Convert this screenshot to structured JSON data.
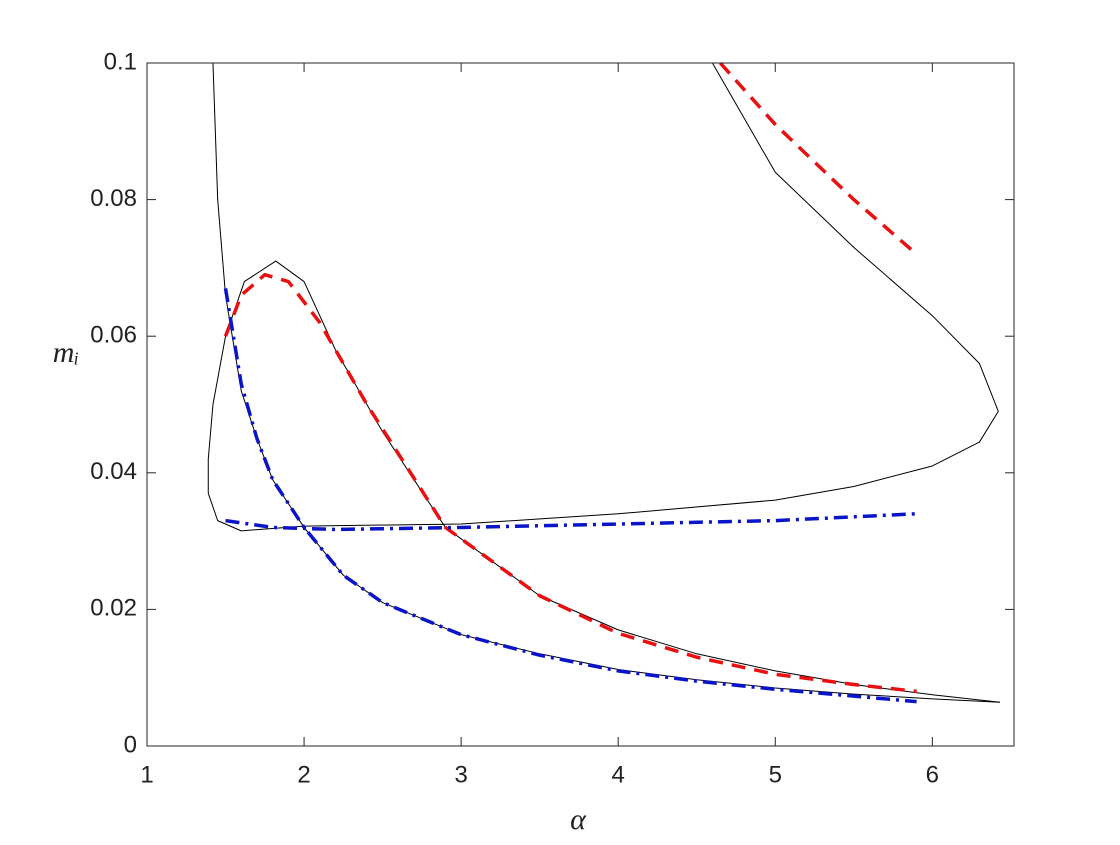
{
  "chart_data": {
    "type": "line",
    "xlabel": "α",
    "ylabel": "mᵢ",
    "xlim": [
      1,
      6.52
    ],
    "ylim": [
      0,
      0.1
    ],
    "xticks": [
      1,
      2,
      3,
      4,
      5,
      6
    ],
    "yticks": [
      0,
      0.02,
      0.04,
      0.06,
      0.08,
      0.1
    ],
    "grid": false,
    "series": [
      {
        "color": "#000000",
        "line_style": "solid",
        "x": [
          4.6,
          5.0,
          5.5,
          6.0,
          6.3,
          6.42,
          6.3,
          6.0,
          5.5,
          5.0,
          4.0,
          3.0,
          2.0,
          1.6,
          1.45,
          1.39,
          1.39,
          1.42,
          1.5,
          1.62,
          1.82,
          2.0,
          2.2,
          2.5,
          2.9,
          3.5,
          4.0,
          4.5,
          5.0,
          5.5,
          6.0,
          6.43
        ],
        "values": [
          0.1,
          0.084,
          0.073,
          0.063,
          0.056,
          0.049,
          0.0445,
          0.041,
          0.038,
          0.036,
          0.034,
          0.0325,
          0.0322,
          0.0315,
          0.033,
          0.037,
          0.042,
          0.05,
          0.06,
          0.068,
          0.071,
          0.068,
          0.058,
          0.046,
          0.032,
          0.022,
          0.017,
          0.0135,
          0.011,
          0.009,
          0.0075,
          0.0064
        ]
      },
      {
        "color": "#000000",
        "line_style": "solid",
        "x": [
          1.42,
          1.45,
          1.5,
          1.6,
          1.7,
          1.8,
          2.0,
          2.25,
          2.5,
          3.0,
          3.5,
          4.0,
          4.5,
          5.0,
          5.5,
          6.0,
          6.43
        ],
        "values": [
          0.1,
          0.08,
          0.066,
          0.052,
          0.045,
          0.039,
          0.032,
          0.025,
          0.021,
          0.0163,
          0.0135,
          0.0112,
          0.0097,
          0.0085,
          0.0076,
          0.0069,
          0.0064
        ]
      },
      {
        "color": "#e81010",
        "line_style": "dashed",
        "x": [
          1.5,
          1.6,
          1.75,
          1.9,
          2.1,
          2.4,
          2.9,
          3.5,
          4.0,
          4.5,
          5.0,
          5.5,
          5.9
        ],
        "values": [
          0.06,
          0.066,
          0.069,
          0.068,
          0.062,
          0.05,
          0.032,
          0.022,
          0.0165,
          0.013,
          0.0105,
          0.009,
          0.008
        ]
      },
      {
        "color": "#e81010",
        "line_style": "dashed",
        "x": [
          4.65,
          5.0,
          5.5,
          5.9
        ],
        "values": [
          0.1,
          0.091,
          0.08,
          0.072
        ]
      },
      {
        "color": "#0a14c8",
        "line_style": "dashdot",
        "x": [
          1.5,
          1.55,
          1.6,
          1.7,
          1.8,
          2.0,
          2.25,
          2.5,
          3.0,
          3.5,
          4.0,
          4.5,
          5.0,
          5.5,
          5.9
        ],
        "values": [
          0.067,
          0.06,
          0.053,
          0.045,
          0.039,
          0.032,
          0.025,
          0.021,
          0.0163,
          0.0133,
          0.011,
          0.0095,
          0.0083,
          0.0073,
          0.0065
        ]
      },
      {
        "color": "#0a14c8",
        "line_style": "dashdot",
        "x": [
          1.5,
          1.8,
          2.2,
          3.0,
          4.0,
          5.0,
          5.9
        ],
        "values": [
          0.033,
          0.032,
          0.0317,
          0.032,
          0.0325,
          0.033,
          0.034
        ]
      }
    ]
  }
}
